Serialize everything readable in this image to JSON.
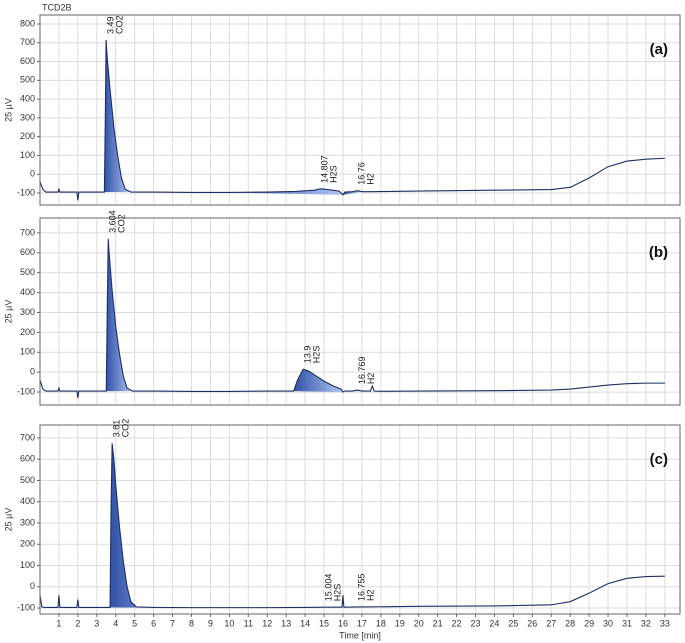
{
  "chart_data": [
    {
      "type": "line",
      "title": "TCD2B",
      "panel_label": "(a)",
      "y_label": "25 µV",
      "color": "#1c2f66",
      "fill_color": "#2f62d0",
      "xlim": [
        0,
        33.8
      ],
      "ylim": [
        -164,
        848
      ],
      "yticks": [
        -100,
        0,
        100,
        200,
        300,
        400,
        500,
        600,
        700,
        800
      ],
      "grid": true,
      "x": [
        0,
        0.15,
        0.3,
        0.95,
        1.0,
        1.05,
        1.95,
        2.0,
        2.05,
        3.4,
        3.45,
        3.49,
        3.55,
        3.7,
        3.9,
        4.1,
        4.3,
        4.5,
        4.8,
        6,
        8,
        10,
        12,
        13.5,
        14.5,
        14.807,
        15.2,
        15.8,
        16.0,
        16.1,
        16.5,
        16.76,
        17.0,
        17.5,
        20,
        24,
        27,
        28,
        29,
        30,
        31,
        32,
        33
      ],
      "values": [
        -40,
        -80,
        -95,
        -95,
        -80,
        -95,
        -95,
        -140,
        -95,
        -95,
        300,
        715,
        620,
        450,
        250,
        100,
        -20,
        -80,
        -95,
        -95,
        -97,
        -97,
        -95,
        -92,
        -85,
        -78,
        -82,
        -90,
        -110,
        -95,
        -93,
        -88,
        -93,
        -93,
        -90,
        -85,
        -82,
        -70,
        -20,
        40,
        70,
        80,
        85
      ],
      "peaks": [
        {
          "x": 3.49,
          "label": "CO2"
        },
        {
          "x": 14.807,
          "label": "H2S"
        },
        {
          "x": 16.76,
          "label": "H2"
        }
      ]
    },
    {
      "type": "line",
      "panel_label": "(b)",
      "y_label": "25 µV",
      "color": "#1c2f66",
      "fill_color": "#2f62d0",
      "xlim": [
        0,
        33.8
      ],
      "ylim": [
        -165,
        775
      ],
      "yticks": [
        -100,
        0,
        100,
        200,
        300,
        400,
        500,
        600,
        700
      ],
      "grid": true,
      "x": [
        0,
        0.15,
        0.3,
        0.95,
        1.0,
        1.05,
        1.95,
        2.0,
        2.05,
        3.5,
        3.55,
        3.604,
        3.65,
        3.8,
        4.0,
        4.2,
        4.4,
        4.6,
        4.9,
        6,
        8,
        10,
        12,
        13.4,
        13.6,
        13.9,
        14.2,
        14.6,
        15.0,
        15.5,
        15.9,
        16.0,
        16.1,
        16.5,
        16.769,
        17.0,
        17.45,
        17.55,
        17.65,
        18,
        20,
        24,
        27,
        28,
        29,
        30,
        31,
        32,
        33
      ],
      "values": [
        -40,
        -85,
        -95,
        -95,
        -80,
        -95,
        -95,
        -130,
        -95,
        -95,
        300,
        670,
        600,
        420,
        230,
        90,
        -20,
        -80,
        -95,
        -95,
        -97,
        -97,
        -95,
        -95,
        -40,
        15,
        5,
        -20,
        -45,
        -70,
        -85,
        -100,
        -95,
        -95,
        -90,
        -95,
        -95,
        -70,
        -95,
        -96,
        -95,
        -93,
        -90,
        -85,
        -75,
        -65,
        -58,
        -55,
        -55
      ],
      "peaks": [
        {
          "x": 3.604,
          "label": "CO2"
        },
        {
          "x": 13.9,
          "label": "H2S"
        },
        {
          "x": 16.769,
          "label": "H2"
        }
      ]
    },
    {
      "type": "line",
      "panel_label": "(c)",
      "y_label": "25 µV",
      "x_label": "Time [min]",
      "color": "#1c2f66",
      "fill_color": "#2f62d0",
      "xlim": [
        0,
        33.8
      ],
      "ylim": [
        -128,
        761
      ],
      "yticks": [
        -100,
        0,
        100,
        200,
        300,
        400,
        500,
        600,
        700
      ],
      "xticks": [
        1,
        2,
        3,
        4,
        5,
        6,
        7,
        8,
        9,
        10,
        11,
        12,
        13,
        14,
        15,
        16,
        17,
        18,
        19,
        20,
        21,
        22,
        23,
        24,
        25,
        26,
        27,
        28,
        29,
        30,
        31,
        32,
        33
      ],
      "grid": true,
      "x": [
        0,
        0.1,
        0.3,
        0.95,
        1.0,
        1.05,
        1.95,
        2.0,
        2.05,
        3.7,
        3.75,
        3.81,
        3.9,
        4.0,
        4.2,
        4.4,
        4.6,
        4.8,
        5.1,
        6,
        8,
        10,
        12,
        14,
        15.004,
        15.5,
        15.95,
        16.0,
        16.05,
        16.755,
        17,
        20,
        24,
        27,
        28,
        29,
        30,
        31,
        32,
        33
      ],
      "values": [
        -40,
        -95,
        -97,
        -97,
        -40,
        -97,
        -97,
        -60,
        -97,
        -97,
        350,
        675,
        600,
        480,
        280,
        120,
        0,
        -70,
        -95,
        -97,
        -98,
        -98,
        -98,
        -97,
        -96,
        -96,
        -96,
        -40,
        -96,
        -95,
        -95,
        -92,
        -90,
        -85,
        -70,
        -30,
        15,
        40,
        48,
        50
      ],
      "peaks": [
        {
          "x": 3.81,
          "label": "CO2"
        },
        {
          "x": 15.004,
          "label": "H2S"
        },
        {
          "x": 16.755,
          "label": "H2"
        }
      ]
    }
  ]
}
